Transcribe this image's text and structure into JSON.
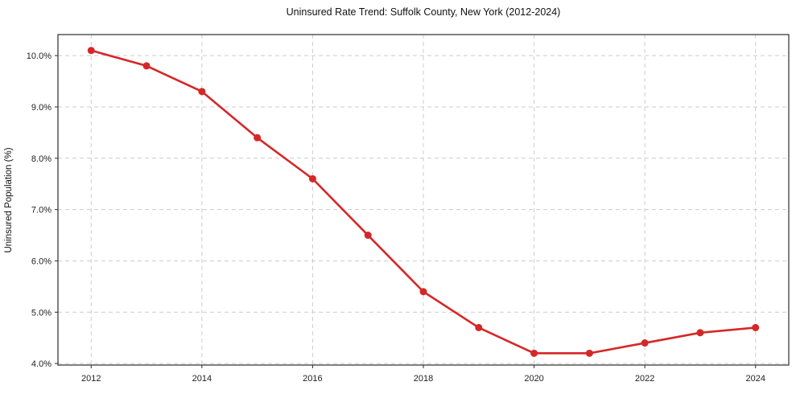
{
  "chart_data": {
    "type": "line",
    "title": "Uninsured Rate Trend: Suffolk County, New York (2012-2024)",
    "xlabel": "",
    "ylabel": "Uninsured Population (%)",
    "x": [
      2012,
      2013,
      2014,
      2015,
      2016,
      2017,
      2018,
      2019,
      2020,
      2021,
      2022,
      2023,
      2024
    ],
    "values": [
      10.1,
      9.8,
      9.3,
      8.4,
      7.6,
      6.5,
      5.4,
      4.7,
      4.2,
      4.2,
      4.4,
      4.6,
      4.7
    ],
    "x_ticks": [
      2012,
      2014,
      2016,
      2018,
      2020,
      2022,
      2024
    ],
    "x_tick_labels": [
      "2012",
      "2014",
      "2016",
      "2018",
      "2020",
      "2022",
      "2024"
    ],
    "y_ticks": [
      4,
      5,
      6,
      7,
      8,
      9,
      10
    ],
    "y_tick_labels": [
      "4.0%",
      "5.0%",
      "6.0%",
      "7.0%",
      "8.0%",
      "9.0%",
      "10.0%"
    ],
    "xlim": [
      2011.4,
      2024.6
    ],
    "ylim": [
      3.97,
      10.41
    ],
    "grid": true,
    "legend": "none",
    "line_color": "#d62728",
    "grid_color": "#cccccc",
    "frame_color": "#2b2b2b",
    "background_color": "#ffffff"
  }
}
